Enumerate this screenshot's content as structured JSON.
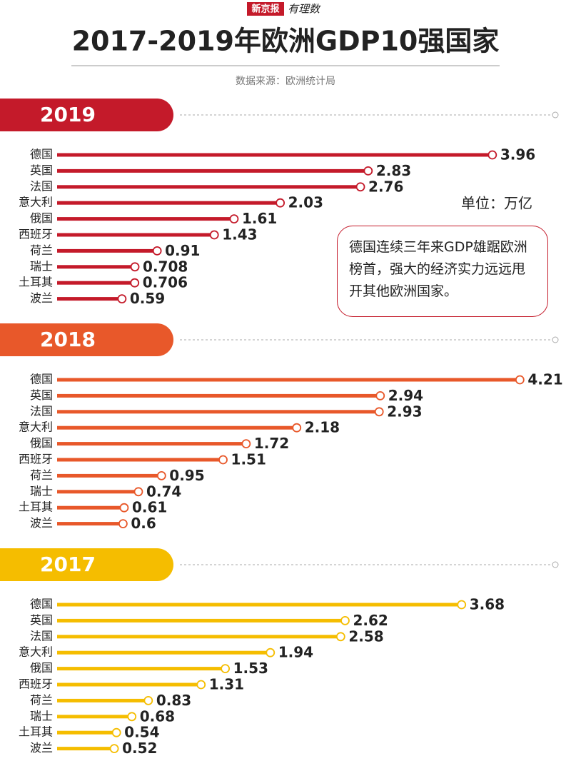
{
  "brand": "新京报",
  "brand_sub": "有理数",
  "title": "2017-2019年欧洲GDP10强国家",
  "source": "数据来源：欧洲统计局",
  "unit": "单位：万亿",
  "note": "德国连续三年来GDP雄踞欧洲榜首，强大的经济实力远远甩开其他欧洲国家。",
  "chart_data": [
    {
      "type": "bar",
      "title": "2019",
      "color": "#c41a2a",
      "categories": [
        "德国",
        "英国",
        "法国",
        "意大利",
        "俄国",
        "西班牙",
        "荷兰",
        "瑞士",
        "土耳其",
        "波兰"
      ],
      "values": [
        3.96,
        2.83,
        2.76,
        2.03,
        1.61,
        1.43,
        0.91,
        0.708,
        0.706,
        0.59
      ]
    },
    {
      "type": "bar",
      "title": "2018",
      "color": "#e8582a",
      "categories": [
        "德国",
        "英国",
        "法国",
        "意大利",
        "俄国",
        "西班牙",
        "荷兰",
        "瑞士",
        "土耳其",
        "波兰"
      ],
      "values": [
        4.21,
        2.94,
        2.93,
        2.18,
        1.72,
        1.51,
        0.95,
        0.74,
        0.61,
        0.6
      ]
    },
    {
      "type": "bar",
      "title": "2017",
      "color": "#f5bd00",
      "categories": [
        "德国",
        "英国",
        "法国",
        "意大利",
        "俄国",
        "西班牙",
        "荷兰",
        "瑞士",
        "土耳其",
        "波兰"
      ],
      "values": [
        3.68,
        2.62,
        2.58,
        1.94,
        1.53,
        1.31,
        0.83,
        0.68,
        0.54,
        0.52
      ]
    }
  ]
}
